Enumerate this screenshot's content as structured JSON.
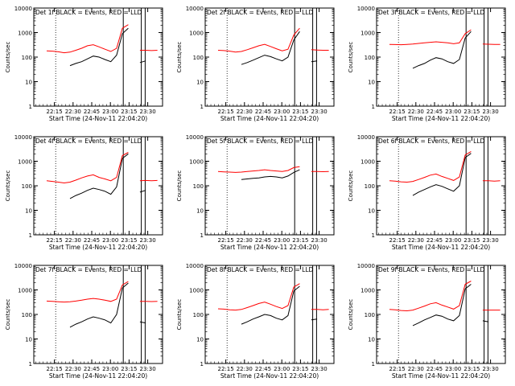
{
  "figure": {
    "colors": {
      "events": "#000000",
      "lld": "#ff0000",
      "frame": "#000000"
    },
    "xlabel": "Start Time (24-Nov-11 22:04:20)",
    "ylabel": "Counts/sec"
  },
  "chart_data": [
    {
      "type": "line",
      "title": "Det 1f BLACK = Events, RED = LLD",
      "xlabel": "Start Time (24-Nov-11 22:04:20)",
      "ylabel": "Counts/sec",
      "x_ticks": [
        "22:15",
        "22:30",
        "22:45",
        "23:00",
        "23:15",
        "23:30"
      ],
      "y_ticks": [
        "1",
        "10",
        "100",
        "1000",
        "10000"
      ],
      "ylim": [
        1,
        10000
      ],
      "yscale": "log",
      "series": [
        {
          "name": "Events",
          "color": "#000000",
          "values": [
            null,
            null,
            null,
            null,
            45,
            55,
            65,
            85,
            110,
            100,
            80,
            65,
            120,
            900,
            1500,
            null,
            60,
            70,
            null,
            null
          ]
        },
        {
          "name": "LLD",
          "color": "#ff0000",
          "values": [
            180,
            175,
            165,
            150,
            160,
            190,
            230,
            290,
            320,
            260,
            210,
            170,
            230,
            1500,
            2100,
            null,
            190,
            190,
            185,
            190
          ]
        }
      ]
    },
    {
      "type": "line",
      "title": "Det 2f BLACK = Events, RED = LLD",
      "xlabel": "Start Time (24-Nov-11 22:04:20)",
      "ylabel": "Counts/sec",
      "x_ticks": [
        "22:15",
        "22:30",
        "22:45",
        "23:00",
        "23:15",
        "23:30"
      ],
      "y_ticks": [
        "1",
        "10",
        "100",
        "1000",
        "10000"
      ],
      "ylim": [
        1,
        10000
      ],
      "yscale": "log",
      "series": [
        {
          "name": "Events",
          "color": "#000000",
          "values": [
            null,
            null,
            null,
            null,
            50,
            60,
            75,
            95,
            120,
            105,
            85,
            70,
            100,
            500,
            1100,
            null,
            65,
            70,
            null,
            null
          ]
        },
        {
          "name": "LLD",
          "color": "#ff0000",
          "values": [
            190,
            185,
            175,
            160,
            170,
            200,
            240,
            290,
            330,
            270,
            220,
            180,
            210,
            800,
            1500,
            null,
            200,
            195,
            190,
            190
          ]
        }
      ]
    },
    {
      "type": "line",
      "title": "Det 3f BLACK = Events, RED = LLD",
      "xlabel": "Start Time (24-Nov-11 22:04:20)",
      "ylabel": "Counts/sec",
      "x_ticks": [
        "22:15",
        "22:30",
        "22:45",
        "23:00",
        "23:15",
        "23:30"
      ],
      "y_ticks": [
        "1",
        "10",
        "100",
        "1000",
        "10000"
      ],
      "ylim": [
        1,
        10000
      ],
      "yscale": "log",
      "series": [
        {
          "name": "Events",
          "color": "#000000",
          "values": [
            null,
            null,
            null,
            null,
            35,
            45,
            55,
            75,
            95,
            85,
            65,
            55,
            80,
            600,
            1100,
            null,
            50,
            null,
            null,
            null
          ]
        },
        {
          "name": "LLD",
          "color": "#ff0000",
          "values": [
            330,
            325,
            320,
            330,
            340,
            360,
            380,
            400,
            420,
            400,
            380,
            350,
            380,
            900,
            1300,
            null,
            340,
            335,
            330,
            330
          ]
        }
      ]
    },
    {
      "type": "line",
      "title": "Det 4f BLACK = Events, RED = LLD",
      "xlabel": "Start Time (24-Nov-11 22:04:20)",
      "ylabel": "Counts/sec",
      "x_ticks": [
        "22:15",
        "22:30",
        "22:45",
        "23:00",
        "23:15",
        "23:30"
      ],
      "y_ticks": [
        "1",
        "10",
        "100",
        "1000",
        "10000"
      ],
      "ylim": [
        1,
        10000
      ],
      "yscale": "log",
      "series": [
        {
          "name": "Events",
          "color": "#000000",
          "values": [
            null,
            null,
            null,
            null,
            30,
            40,
            50,
            65,
            80,
            70,
            60,
            45,
            90,
            1300,
            2000,
            null,
            55,
            65,
            null,
            null
          ]
        },
        {
          "name": "LLD",
          "color": "#ff0000",
          "values": [
            160,
            150,
            140,
            130,
            140,
            170,
            210,
            250,
            280,
            220,
            190,
            160,
            220,
            1700,
            2300,
            null,
            160,
            165,
            160,
            165
          ]
        }
      ]
    },
    {
      "type": "line",
      "title": "Det 5f BLACK = Events, RED = LLD",
      "xlabel": "Start Time (24-Nov-11 22:04:20)",
      "ylabel": "Counts/sec",
      "x_ticks": [
        "22:15",
        "22:30",
        "22:45",
        "23:00",
        "23:15",
        "23:30"
      ],
      "y_ticks": [
        "1",
        "10",
        "100",
        "1000",
        "10000"
      ],
      "ylim": [
        1,
        10000
      ],
      "yscale": "log",
      "series": [
        {
          "name": "Events",
          "color": "#000000",
          "values": [
            null,
            null,
            null,
            null,
            180,
            190,
            200,
            210,
            230,
            240,
            230,
            210,
            250,
            350,
            450,
            null,
            null,
            null,
            null,
            null
          ]
        },
        {
          "name": "LLD",
          "color": "#ff0000",
          "values": [
            380,
            370,
            360,
            350,
            360,
            380,
            400,
            420,
            450,
            420,
            400,
            380,
            420,
            550,
            600,
            null,
            380,
            380,
            375,
            380
          ]
        }
      ]
    },
    {
      "type": "line",
      "title": "Det 6f BLACK = Events, RED = LLD",
      "xlabel": "Start Time (24-Nov-11 22:04:20)",
      "ylabel": "Counts/sec",
      "x_ticks": [
        "22:15",
        "22:30",
        "22:45",
        "23:00",
        "23:15",
        "23:30"
      ],
      "y_ticks": [
        "1",
        "10",
        "100",
        "1000",
        "10000"
      ],
      "ylim": [
        1,
        10000
      ],
      "yscale": "log",
      "series": [
        {
          "name": "Events",
          "color": "#000000",
          "values": [
            null,
            null,
            null,
            null,
            40,
            55,
            70,
            90,
            110,
            95,
            75,
            60,
            100,
            1400,
            2100,
            null,
            null,
            null,
            null,
            null
          ]
        },
        {
          "name": "LLD",
          "color": "#ff0000",
          "values": [
            160,
            155,
            145,
            140,
            150,
            180,
            220,
            270,
            300,
            240,
            200,
            165,
            230,
            1800,
            2500,
            null,
            160,
            160,
            155,
            160
          ]
        }
      ]
    },
    {
      "type": "line",
      "title": "Det 7f BLACK = Events, RED = LLD",
      "xlabel": "Start Time (24-Nov-11 22:04:20)",
      "ylabel": "Counts/sec",
      "x_ticks": [
        "22:15",
        "22:30",
        "22:45",
        "23:00",
        "23:15",
        "23:30"
      ],
      "y_ticks": [
        "1",
        "10",
        "100",
        "1000",
        "10000"
      ],
      "ylim": [
        1,
        10000
      ],
      "yscale": "log",
      "series": [
        {
          "name": "Events",
          "color": "#000000",
          "values": [
            null,
            null,
            null,
            null,
            30,
            40,
            50,
            65,
            80,
            70,
            60,
            45,
            100,
            1200,
            1900,
            null,
            50,
            45,
            null,
            null
          ]
        },
        {
          "name": "LLD",
          "color": "#ff0000",
          "values": [
            350,
            340,
            330,
            320,
            330,
            350,
            380,
            420,
            450,
            420,
            380,
            340,
            420,
            1600,
            2200,
            null,
            340,
            340,
            335,
            340
          ]
        }
      ]
    },
    {
      "type": "line",
      "title": "Det 8f BLACK = Events, RED = LLD",
      "xlabel": "Start Time (24-Nov-11 22:04:20)",
      "ylabel": "Counts/sec",
      "x_ticks": [
        "22:15",
        "22:30",
        "22:45",
        "23:00",
        "23:15",
        "23:30"
      ],
      "y_ticks": [
        "1",
        "10",
        "100",
        "1000",
        "10000"
      ],
      "ylim": [
        1,
        10000
      ],
      "yscale": "log",
      "series": [
        {
          "name": "Events",
          "color": "#000000",
          "values": [
            null,
            null,
            null,
            null,
            40,
            50,
            65,
            80,
            100,
            90,
            70,
            60,
            90,
            900,
            1400,
            null,
            60,
            65,
            null,
            null
          ]
        },
        {
          "name": "LLD",
          "color": "#ff0000",
          "values": [
            170,
            165,
            155,
            150,
            160,
            190,
            230,
            280,
            320,
            260,
            210,
            175,
            230,
            1300,
            1800,
            null,
            160,
            160,
            155,
            160
          ]
        }
      ]
    },
    {
      "type": "line",
      "title": "Det 9f BLACK = Events, RED = LLD",
      "xlabel": "Start Time (24-Nov-11 22:04:20)",
      "ylabel": "Counts/sec",
      "x_ticks": [
        "22:15",
        "22:30",
        "22:45",
        "23:00",
        "23:15",
        "23:30"
      ],
      "y_ticks": [
        "1",
        "10",
        "100",
        "1000",
        "10000"
      ],
      "ylim": [
        1,
        10000
      ],
      "yscale": "log",
      "series": [
        {
          "name": "Events",
          "color": "#000000",
          "values": [
            null,
            null,
            null,
            null,
            35,
            45,
            60,
            75,
            95,
            85,
            65,
            55,
            90,
            1100,
            1700,
            null,
            55,
            50,
            null,
            null
          ]
        },
        {
          "name": "LLD",
          "color": "#ff0000",
          "values": [
            160,
            155,
            145,
            140,
            150,
            180,
            220,
            270,
            300,
            240,
            200,
            165,
            230,
            1700,
            2300,
            null,
            150,
            150,
            150,
            150
          ]
        }
      ]
    }
  ]
}
